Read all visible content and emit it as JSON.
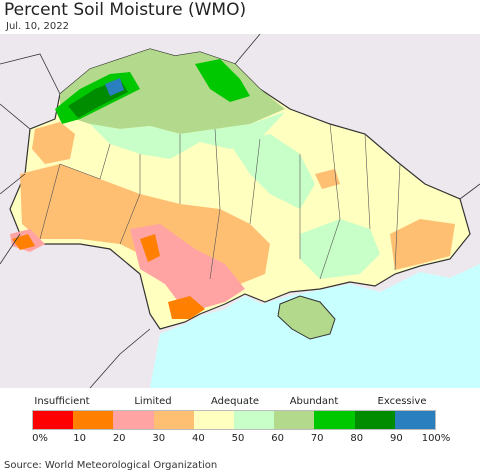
{
  "title": "Percent Soil Moisture (WMO)",
  "date": "Jul. 10, 2022",
  "source": "Source: World Meteorological Organization",
  "legend": {
    "categories": [
      "Insufficient",
      "Limited",
      "Adequate",
      "Abundant",
      "Excessive"
    ],
    "ticks": [
      "0%",
      "10",
      "20",
      "30",
      "40",
      "50",
      "60",
      "70",
      "80",
      "90",
      "100%"
    ],
    "colors": [
      "#ff0000",
      "#ff7f00",
      "#ffa3a3",
      "#ffbf73",
      "#ffffbf",
      "#c8ffc8",
      "#b3d98c",
      "#00c800",
      "#008c00",
      "#2a7fbf"
    ]
  },
  "map": {
    "land_color": "#ede8ee",
    "sea_color": "#c8ffff",
    "border_color": "#333333"
  }
}
